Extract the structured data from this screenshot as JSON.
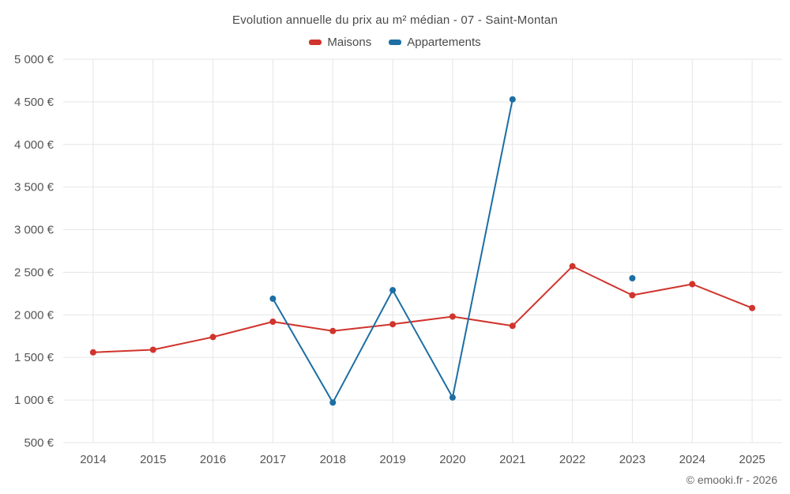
{
  "header": {
    "title": "Evolution annuelle du prix au m² médian - 07 - Saint-Montan"
  },
  "footer": {
    "credit": "© emooki.fr - 2026"
  },
  "chart_data": {
    "type": "line",
    "title": "Evolution annuelle du prix au m² médian - 07 - Saint-Montan",
    "categories": [
      "2014",
      "2015",
      "2016",
      "2017",
      "2018",
      "2019",
      "2020",
      "2021",
      "2022",
      "2023",
      "2024",
      "2025"
    ],
    "series": [
      {
        "name": "Maisons",
        "color": "#d0342c",
        "values": [
          1560,
          1590,
          1740,
          1920,
          1810,
          1890,
          1980,
          1870,
          2570,
          2230,
          2360,
          2080
        ]
      },
      {
        "name": "Appartements",
        "color": "#1c6ea4",
        "values": [
          null,
          null,
          null,
          2190,
          970,
          2290,
          1030,
          4530,
          null,
          2430,
          null,
          null
        ]
      }
    ],
    "xlabel": "",
    "ylabel": "",
    "ylim": [
      500,
      5000
    ],
    "yticks": [
      500,
      1000,
      1500,
      2000,
      2500,
      3000,
      3500,
      4000,
      4500,
      5000
    ],
    "ytick_labels": [
      "500 €",
      "1 000 €",
      "1 500 €",
      "2 000 €",
      "2 500 €",
      "3 000 €",
      "3 500 €",
      "4 000 €",
      "4 500 €",
      "5 000 €"
    ],
    "grid": true,
    "grid_color": "#e6e6e6",
    "tick_color": "#555555",
    "legend_position": "top",
    "marker_radius": 4,
    "line_width": 2
  }
}
